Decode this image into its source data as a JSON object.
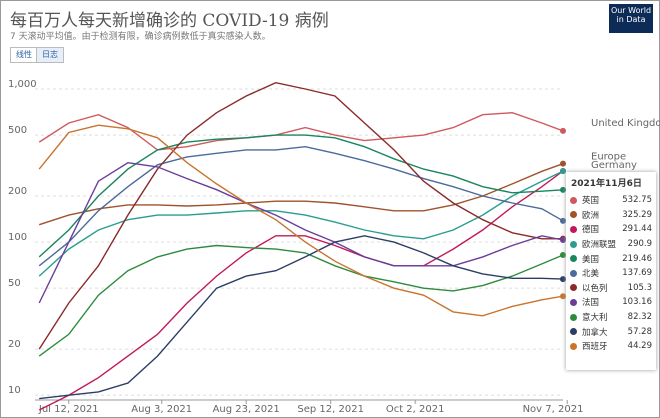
{
  "chart_data": {
    "type": "line",
    "title": "每百万人每天新增确诊的 COVID-19 病例",
    "subtitle": "7 天滚动平均值。由于检测有限，确诊病例数低于真实感染人数。",
    "scale_buttons": [
      "线性",
      "日志"
    ],
    "active_button": 1,
    "logo": "Our World in Data",
    "log_scale": true,
    "grid": true,
    "x": [
      "2021-07-05",
      "2021-07-12",
      "2021-07-19",
      "2021-07-26",
      "2021-08-02",
      "2021-08-09",
      "2021-08-16",
      "2021-08-23",
      "2021-08-30",
      "2021-09-06",
      "2021-09-13",
      "2021-09-20",
      "2021-09-27",
      "2021-10-04",
      "2021-10-11",
      "2021-10-18",
      "2021-10-25",
      "2021-11-01",
      "2021-11-06"
    ],
    "xlim": [
      "2021-07-04",
      "2021-11-06"
    ],
    "xticks": [
      {
        "value": "2021-07-12",
        "label": "Jul 12, 2021"
      },
      {
        "value": "2021-08-03",
        "label": "Aug 3, 2021"
      },
      {
        "value": "2021-08-23",
        "label": "Aug 23, 2021"
      },
      {
        "value": "2021-09-12",
        "label": "Sep 12, 2021"
      },
      {
        "value": "2021-10-02",
        "label": "Oct 2, 2021"
      },
      {
        "value": "2021-11-07",
        "label": "Nov 7, 2021"
      }
    ],
    "ylim": [
      9.3,
      1435
    ],
    "yticks": [
      10,
      20,
      50,
      100,
      200,
      500,
      {
        "value": 1000,
        "label": "1,000"
      }
    ],
    "line_labels": [
      "United Kingdom",
      "Europe",
      "Germany"
    ],
    "tooltip_title": "2021年11月6日",
    "series": [
      {
        "name": "英国",
        "color": "#d0595e",
        "values": [
          450,
          600,
          680,
          560,
          400,
          420,
          460,
          480,
          500,
          560,
          500,
          460,
          480,
          500,
          560,
          680,
          700,
          600,
          532.75
        ]
      },
      {
        "name": "欧洲",
        "color": "#a0522d",
        "values": [
          130,
          150,
          165,
          175,
          175,
          172,
          175,
          180,
          185,
          185,
          180,
          170,
          160,
          160,
          175,
          200,
          240,
          290,
          325.29
        ]
      },
      {
        "name": "德国",
        "color": "#c2185b",
        "values": [
          8,
          10,
          13,
          18,
          25,
          40,
          60,
          85,
          110,
          110,
          95,
          80,
          70,
          70,
          90,
          120,
          170,
          230,
          291.44
        ]
      },
      {
        "name": "欧洲联盟",
        "color": "#2a9d8f",
        "values": [
          60,
          90,
          120,
          140,
          150,
          150,
          155,
          160,
          160,
          150,
          135,
          120,
          110,
          105,
          120,
          150,
          200,
          250,
          290.9
        ]
      },
      {
        "name": "美国",
        "color": "#18865f",
        "values": [
          80,
          120,
          200,
          300,
          400,
          450,
          470,
          480,
          500,
          500,
          480,
          420,
          350,
          300,
          270,
          230,
          210,
          215,
          219.46
        ]
      },
      {
        "name": "北美",
        "color": "#4c6a9c",
        "values": [
          70,
          100,
          160,
          230,
          320,
          360,
          380,
          400,
          400,
          420,
          380,
          340,
          300,
          260,
          230,
          200,
          180,
          165,
          137.69
        ]
      },
      {
        "name": "以色列",
        "color": "#8b2a2a",
        "values": [
          20,
          40,
          70,
          150,
          300,
          500,
          700,
          900,
          1100,
          1000,
          900,
          600,
          400,
          250,
          180,
          140,
          115,
          105,
          105.3
        ]
      },
      {
        "name": "法国",
        "color": "#6a3d9a",
        "values": [
          40,
          100,
          250,
          330,
          310,
          260,
          220,
          180,
          150,
          120,
          100,
          80,
          70,
          70,
          70,
          80,
          95,
          110,
          103.16
        ]
      },
      {
        "name": "意大利",
        "color": "#2e8b3e",
        "values": [
          18,
          25,
          45,
          65,
          80,
          90,
          95,
          92,
          90,
          85,
          70,
          60,
          55,
          50,
          48,
          52,
          60,
          72,
          82.32
        ]
      },
      {
        "name": "加拿大",
        "color": "#2c3e66",
        "values": [
          9.5,
          10,
          10.5,
          12,
          18,
          30,
          50,
          60,
          65,
          80,
          100,
          110,
          100,
          85,
          70,
          62,
          58,
          58,
          57.28
        ]
      },
      {
        "name": "西班牙",
        "color": "#c8742e",
        "values": [
          300,
          520,
          580,
          550,
          480,
          330,
          240,
          180,
          140,
          100,
          75,
          60,
          50,
          45,
          35,
          33,
          38,
          42,
          44.29
        ]
      }
    ]
  }
}
